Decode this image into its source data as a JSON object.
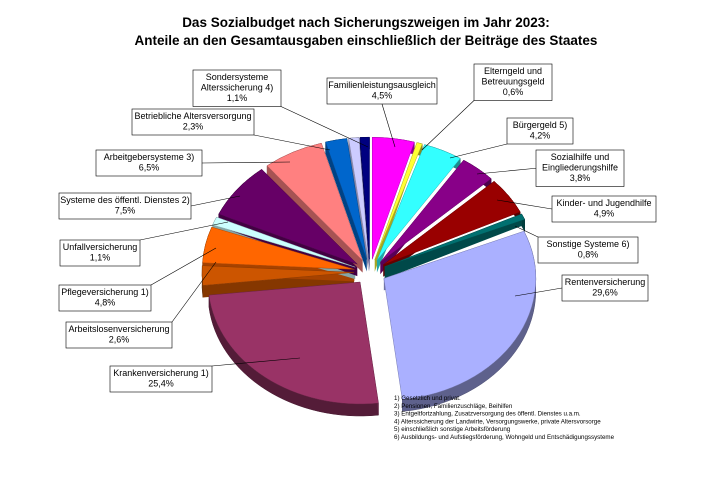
{
  "chart_data": {
    "type": "pie",
    "title_line1": "Das Sozialbudget nach Sicherungszweigen im Jahr 2023:",
    "title_line2": "Anteile an den Gesamtausgaben einschließlich der Beiträge des Staates",
    "slices": [
      {
        "name_lines": [
          "Familienleistungsausgleich"
        ],
        "value_label": "4,5%",
        "value": 4.5,
        "color": "#ff00ff"
      },
      {
        "name_lines": [
          "Elterngeld  und",
          "Betreuungsgeld"
        ],
        "value_label": "0,6%",
        "value": 0.6,
        "color": "#ffff33"
      },
      {
        "name_lines": [
          "Bürgergeld  5)"
        ],
        "value_label": "4,2%",
        "value": 4.2,
        "color": "#33ffff"
      },
      {
        "name_lines": [
          "Sozialhilfe und",
          "Eingliederungshilfe"
        ],
        "value_label": "3,8%",
        "value": 3.8,
        "color": "#880088"
      },
      {
        "name_lines": [
          "Kinder- und Jugendhilfe"
        ],
        "value_label": "4,9%",
        "value": 4.9,
        "color": "#990000"
      },
      {
        "name_lines": [
          "Sonstige  Systeme  6)"
        ],
        "value_label": "0,8%",
        "value": 0.8,
        "color": "#007070"
      },
      {
        "name_lines": [
          "Rentenversicherung"
        ],
        "value_label": "29,6%",
        "value": 29.6,
        "color": "#aab0ff"
      },
      {
        "name_lines": [
          "Krankenversicherung  1)"
        ],
        "value_label": "25,4%",
        "value": 25.4,
        "color": "#993366"
      },
      {
        "name_lines": [
          "Arbeitslosenversicherung"
        ],
        "value_label": "2,6%",
        "value": 2.6,
        "color": "#cc5500"
      },
      {
        "name_lines": [
          "Pflegeversicherung  1)"
        ],
        "value_label": "4,8%",
        "value": 4.8,
        "color": "#ff6600"
      },
      {
        "name_lines": [
          "Unfallversicherung"
        ],
        "value_label": "1,1%",
        "value": 1.1,
        "color": "#ccffff"
      },
      {
        "name_lines": [
          "Systeme des öffentl.  Dienstes 2)"
        ],
        "value_label": "7,5%",
        "value": 7.5,
        "color": "#660066"
      },
      {
        "name_lines": [
          "Arbeitgebersysteme  3)"
        ],
        "value_label": "6,5%",
        "value": 6.5,
        "color": "#ff8080"
      },
      {
        "name_lines": [
          "Betriebliche  Altersversorgung"
        ],
        "value_label": "2,3%",
        "value": 2.3,
        "color": "#0066cc"
      },
      {
        "name_lines": [
          "Sondersysteme",
          "Alterssicherung  4)"
        ],
        "value_label": "1,1%",
        "value": 1.1,
        "color": "#ccccff"
      },
      {
        "name_lines": [],
        "value_label": "",
        "value": 1.0,
        "color": "#000080"
      }
    ],
    "footnotes": [
      "1) Gesetzlich  und privat.",
      "2) Pensionen,  Familienzuschläge,  Beihilfen",
      "3) Entgeltfortzahlung,  Zusatzversorgung  des öffentl.  Dienstes  u.a.m.",
      "4) Alterssicherung  der Landwirte,  Versorgungswerke,  private  Altersvorsorge",
      "5) einschließlich  sonstige  Arbeitsförderung",
      "6) Ausbildungs-  und Aufstiegsförderung,  Wohngeld und Entschädigungssysteme"
    ]
  }
}
